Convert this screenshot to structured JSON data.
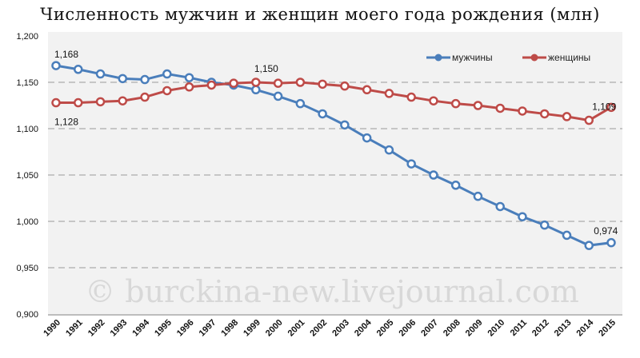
{
  "chart_data": {
    "type": "line",
    "title": "Численность мужчин и женщин моего года рождения (млн)",
    "xlabel": "",
    "ylabel": "",
    "ylim": [
      0.9,
      1.2
    ],
    "yticks": [
      "0,900",
      "0,950",
      "1,000",
      "1,050",
      "1,100",
      "1,150",
      "1,200"
    ],
    "x": [
      "1990",
      "1991",
      "1992",
      "1993",
      "1994",
      "1995",
      "1996",
      "1997",
      "1998",
      "1999",
      "2000",
      "2001",
      "2002",
      "2003",
      "2004",
      "2005",
      "2006",
      "2007",
      "2008",
      "2009",
      "2010",
      "2011",
      "2012",
      "2013",
      "2014",
      "2015"
    ],
    "series": [
      {
        "name": "мужчины",
        "color": "#4a7ebb",
        "values": [
          1.168,
          1.164,
          1.159,
          1.154,
          1.153,
          1.159,
          1.155,
          1.15,
          1.147,
          1.142,
          1.135,
          1.127,
          1.116,
          1.104,
          1.09,
          1.077,
          1.062,
          1.05,
          1.039,
          1.027,
          1.016,
          1.005,
          0.996,
          0.985,
          0.974,
          0.977
        ]
      },
      {
        "name": "женщины",
        "color": "#be4b48",
        "values": [
          1.128,
          1.128,
          1.129,
          1.13,
          1.134,
          1.141,
          1.145,
          1.147,
          1.149,
          1.15,
          1.149,
          1.15,
          1.148,
          1.146,
          1.142,
          1.138,
          1.134,
          1.13,
          1.127,
          1.125,
          1.122,
          1.119,
          1.116,
          1.113,
          1.109,
          1.123
        ]
      }
    ],
    "annotations": [
      {
        "text": "1,168",
        "series": 0,
        "index": 0
      },
      {
        "text": "1,128",
        "series": 1,
        "index": 0
      },
      {
        "text": "1,150",
        "series": 1,
        "index": 9
      },
      {
        "text": "1,109",
        "series": 1,
        "index": 24
      },
      {
        "text": "0,974",
        "series": 0,
        "index": 24
      }
    ],
    "legend": "top-right",
    "grid": true
  },
  "watermark": "© burckina-new.livejournal.com"
}
